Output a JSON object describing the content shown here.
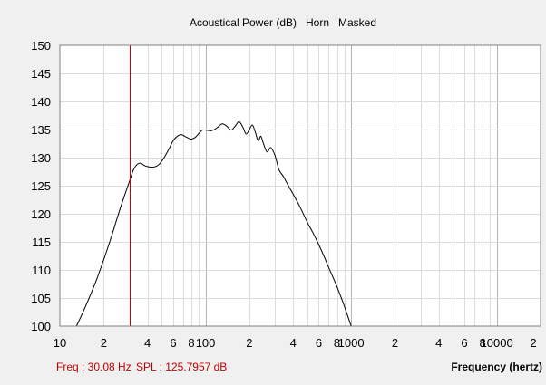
{
  "chart_data": {
    "type": "line",
    "title": "Acoustical Power (dB)   Horn   Masked",
    "xlabel": "Frequency (hertz)",
    "ylabel": "",
    "x_scale": "log",
    "xlim": [
      10,
      20000
    ],
    "ylim": [
      100,
      150
    ],
    "grid": true,
    "y_ticks": [
      100,
      105,
      110,
      115,
      120,
      125,
      130,
      135,
      140,
      145,
      150
    ],
    "x_tick_labels": [
      {
        "value": 10,
        "label": "10"
      },
      {
        "value": 20,
        "label": "2"
      },
      {
        "value": 40,
        "label": "4"
      },
      {
        "value": 60,
        "label": "6"
      },
      {
        "value": 80,
        "label": "8"
      },
      {
        "value": 100,
        "label": "100"
      },
      {
        "value": 200,
        "label": "2"
      },
      {
        "value": 400,
        "label": "4"
      },
      {
        "value": 600,
        "label": "6"
      },
      {
        "value": 800,
        "label": "8"
      },
      {
        "value": 1000,
        "label": "1000"
      },
      {
        "value": 2000,
        "label": "2"
      },
      {
        "value": 4000,
        "label": "4"
      },
      {
        "value": 6000,
        "label": "6"
      },
      {
        "value": 8000,
        "label": "8"
      },
      {
        "value": 10000,
        "label": "10000"
      },
      {
        "value": 20000,
        "label": "2"
      }
    ],
    "cursor": {
      "freq_label": "Freq : 30.08 Hz",
      "spl_label": "SPL : 125.7957 dB",
      "x": 30.08,
      "color": "#cc0000"
    },
    "series": [
      {
        "color": "#000000",
        "x": [
          13.0,
          15.0,
          18.0,
          22.0,
          26.0,
          30.08,
          32.0,
          34.0,
          36.0,
          38.0,
          40.0,
          44.0,
          48.0,
          52.0,
          56.0,
          60.0,
          64.0,
          68.0,
          72.0,
          76.0,
          80.0,
          85.0,
          90.0,
          95.0,
          100.0,
          110.0,
          120.0,
          130.0,
          140.0,
          150.0,
          160.0,
          170.0,
          180.0,
          190.0,
          200.0,
          210.0,
          220.0,
          230.0,
          240.0,
          250.0,
          265.0,
          280.0,
          300.0,
          320.0,
          340.0,
          360.0,
          380.0,
          400.0,
          450.0,
          500.0,
          550.0,
          600.0,
          650.0,
          700.0,
          800.0,
          900.0,
          1000.0
        ],
        "y": [
          100.0,
          103.5,
          108.5,
          115.0,
          121.0,
          125.8,
          127.8,
          128.8,
          129.0,
          128.6,
          128.4,
          128.3,
          128.8,
          130.0,
          131.5,
          133.0,
          133.8,
          134.1,
          133.8,
          133.5,
          133.3,
          133.6,
          134.3,
          134.9,
          134.9,
          134.8,
          135.3,
          136.0,
          135.6,
          134.9,
          135.6,
          136.4,
          135.5,
          134.2,
          135.0,
          135.8,
          134.5,
          133.0,
          133.8,
          132.5,
          131.0,
          131.8,
          130.4,
          127.8,
          126.8,
          125.6,
          124.5,
          123.5,
          121.0,
          118.5,
          116.5,
          114.5,
          112.5,
          110.5,
          107.0,
          103.5,
          100.0
        ]
      }
    ]
  }
}
